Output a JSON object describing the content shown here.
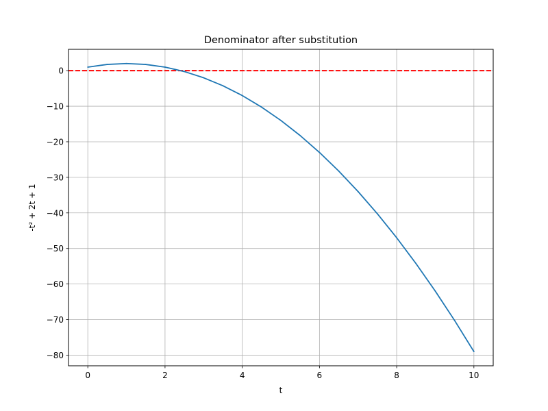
{
  "chart_data": {
    "type": "line",
    "title": "Denominator after substitution",
    "xlabel": "t",
    "ylabel": "-t² + 2t + 1",
    "xlim": [
      -0.5,
      10.5
    ],
    "ylim": [
      -83.0,
      6.0
    ],
    "x_ticks": [
      0,
      2,
      4,
      6,
      8,
      10
    ],
    "x_tick_labels": [
      "0",
      "2",
      "4",
      "6",
      "8",
      "10"
    ],
    "y_ticks": [
      0,
      -10,
      -20,
      -30,
      -40,
      -50,
      -60,
      -70,
      -80
    ],
    "y_tick_labels": [
      "0",
      "−10",
      "−20",
      "−30",
      "−40",
      "−50",
      "−60",
      "−70",
      "−80"
    ],
    "grid": true,
    "series": [
      {
        "color": "#1f77b4",
        "x": [
          0,
          0.5,
          1,
          1.5,
          2,
          2.5,
          3,
          3.5,
          4,
          4.5,
          5,
          5.5,
          6,
          6.5,
          7,
          7.5,
          8,
          8.5,
          9,
          9.5,
          10
        ],
        "y": [
          1,
          1.75,
          2,
          1.75,
          1,
          -0.25,
          -2,
          -4.25,
          -7,
          -10.25,
          -14,
          -18.25,
          -23,
          -28.25,
          -34,
          -40.25,
          -47,
          -54.25,
          -62,
          -70.25,
          -79
        ]
      }
    ],
    "reference_line": {
      "y": 0,
      "color": "#ff0000",
      "style": "dashed"
    }
  }
}
